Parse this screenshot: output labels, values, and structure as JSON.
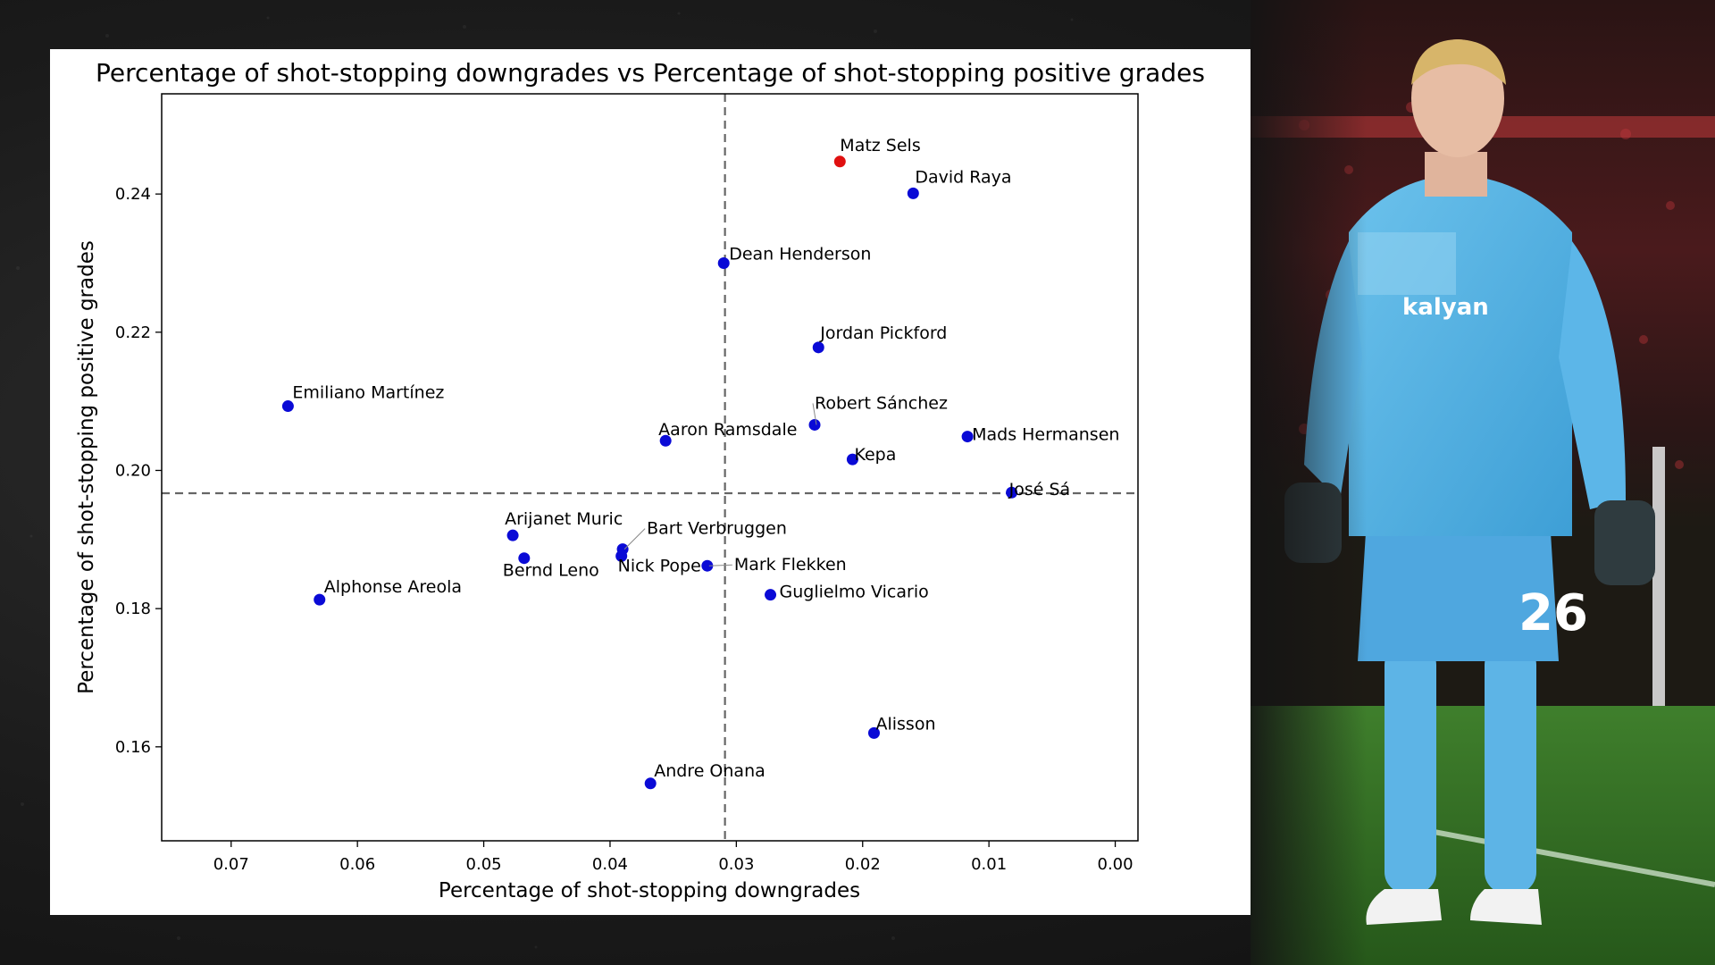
{
  "chart_data": {
    "type": "scatter",
    "title": "Percentage of shot-stopping downgrades vs Percentage of shot-stopping positive grades",
    "xlabel": "Percentage of shot-stopping downgrades",
    "ylabel": "Percentage of shot-stopping positive grades",
    "x_inverted": true,
    "xlim": [
      0.0755,
      -0.0018
    ],
    "ylim": [
      0.1464,
      0.2545
    ],
    "xticks": [
      0.07,
      0.06,
      0.05,
      0.04,
      0.03,
      0.02,
      0.01,
      0.0
    ],
    "xtick_labels": [
      "0.07",
      "0.06",
      "0.05",
      "0.04",
      "0.03",
      "0.02",
      "0.01",
      "0.00"
    ],
    "yticks": [
      0.16,
      0.18,
      0.2,
      0.22,
      0.24
    ],
    "ytick_labels": [
      "0.16",
      "0.18",
      "0.20",
      "0.22",
      "0.24"
    ],
    "reference_lines": {
      "x": 0.0309,
      "y": 0.1967
    },
    "colors": {
      "default_point": "#0a0ad6",
      "highlight_point": "#e01010",
      "reference_line": "#666666"
    },
    "points": [
      {
        "name": "Matz Sels",
        "x": 0.0218,
        "y": 0.2447,
        "highlight": true
      },
      {
        "name": "David Raya",
        "x": 0.016,
        "y": 0.2401
      },
      {
        "name": "Dean Henderson",
        "x": 0.031,
        "y": 0.23
      },
      {
        "name": "Jordan Pickford",
        "x": 0.0235,
        "y": 0.2178
      },
      {
        "name": "Emiliano Martínez",
        "x": 0.0655,
        "y": 0.2093
      },
      {
        "name": "Robert Sánchez",
        "x": 0.0238,
        "y": 0.2066
      },
      {
        "name": "Aaron Ramsdale",
        "x": 0.0356,
        "y": 0.2043
      },
      {
        "name": "Mads Hermansen",
        "x": 0.0117,
        "y": 0.2049
      },
      {
        "name": "Kepa",
        "x": 0.0208,
        "y": 0.2016
      },
      {
        "name": "José Sá",
        "x": 0.0082,
        "y": 0.1968
      },
      {
        "name": "Arijanet Muric",
        "x": 0.0477,
        "y": 0.1906
      },
      {
        "name": "Bart Verbruggen",
        "x": 0.039,
        "y": 0.1886
      },
      {
        "name": "Bernd Leno",
        "x": 0.0468,
        "y": 0.1873
      },
      {
        "name": "Nick Pope",
        "x": 0.0391,
        "y": 0.1876
      },
      {
        "name": "Mark Flekken",
        "x": 0.0323,
        "y": 0.1862
      },
      {
        "name": "Alphonse Areola",
        "x": 0.063,
        "y": 0.1813
      },
      {
        "name": "Guglielmo Vicario",
        "x": 0.0273,
        "y": 0.182
      },
      {
        "name": "Alisson",
        "x": 0.0191,
        "y": 0.162
      },
      {
        "name": "Andre Onana",
        "x": 0.0368,
        "y": 0.1547
      }
    ]
  }
}
